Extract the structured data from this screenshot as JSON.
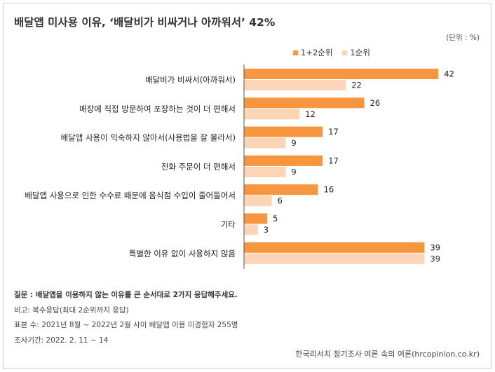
{
  "title": "배달앱 미사용 이유, ‘배달비가 비싸거나 아까워서’ 42%",
  "unit": "(단위 : %)",
  "legend": [
    {
      "label": "1+2순위",
      "color": "#F7963F"
    },
    {
      "label": "1순위",
      "color": "#FBD5B5"
    }
  ],
  "chart_data": {
    "type": "bar",
    "orientation": "horizontal",
    "categories": [
      "배달비가 비싸서(아까워서)",
      "매장에 직접 방문하여 포장하는 것이 더 편해서",
      "배달앱 사용이 익숙하지 않아서(사용법을 잘 몰라서)",
      "전화 주문이 더 편해서",
      "배달앱 사용으로 인한 수수료 때문에 음식점 수입이 줄어들어서",
      "기타",
      "특별한 이유 없이 사용하지 않음"
    ],
    "series": [
      {
        "name": "1+2순위",
        "values": [
          42,
          26,
          17,
          17,
          16,
          5,
          39
        ],
        "color": "#F7963F"
      },
      {
        "name": "1순위",
        "values": [
          22,
          12,
          9,
          9,
          6,
          3,
          39
        ],
        "color": "#FBD5B5"
      }
    ],
    "xlim": [
      0,
      45
    ],
    "data_labels": true,
    "legend_position": "top-right"
  },
  "notes": {
    "question": "질문 : 배달앱을 이용하지 않는 이유를 큰 순서대로 2가지 응답해주세요.",
    "remark": "비고: 복수응답(최대 2순위까지 응답)",
    "sample": "표본 수: 2021년 8월 ~ 2022년 2월 사이 배달앱  이용 미경험자 255명",
    "period": "조사기간: 2022. 2. 11 ~ 14"
  },
  "source": "한국리서치 정기조사 여론 속의 여론(hrcopinion.co.kr)"
}
